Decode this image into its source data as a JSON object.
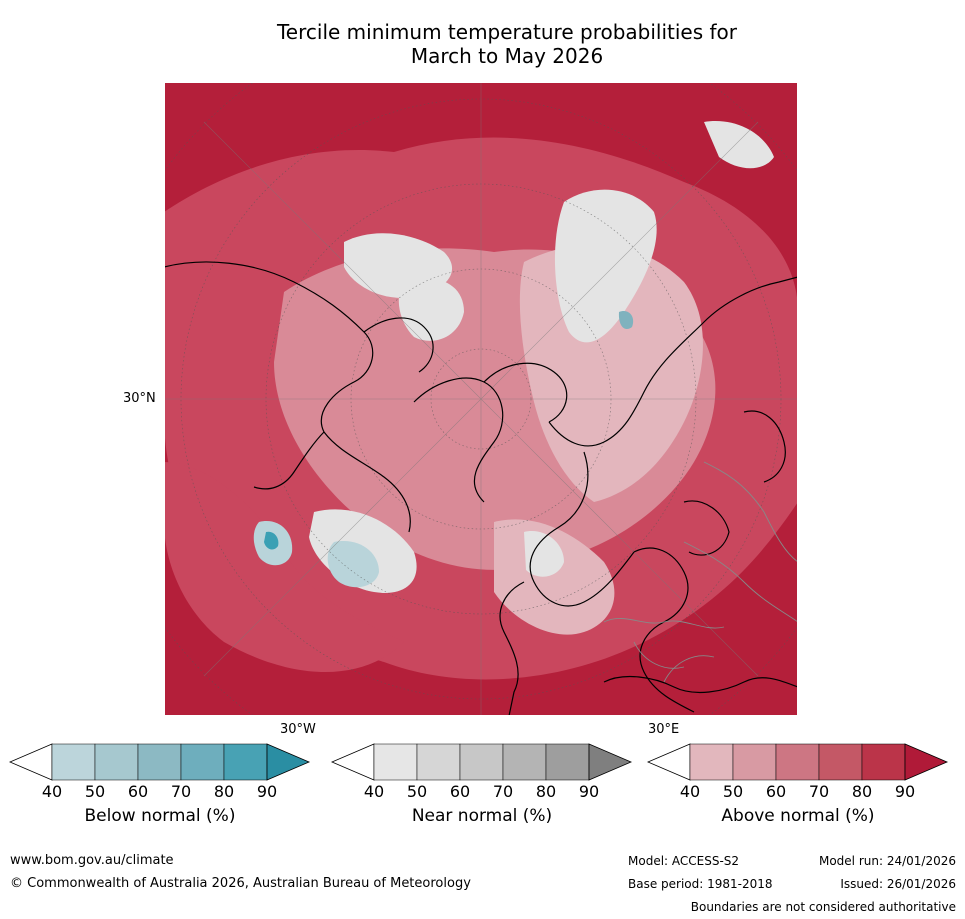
{
  "title_line1": "Tercile minimum temperature probabilities for",
  "title_line2": "March to May 2026",
  "map": {
    "lat_label": "30°N",
    "lon_label_left": "30°W",
    "lon_label_right": "30°E",
    "colors": {
      "above_dark": "#b41f3a",
      "above_mid": "#c9475e",
      "above_light": "#d98a97",
      "above_pale": "#e3b6bd",
      "near_light": "#e4e4e4",
      "below_light": "#b9d4da",
      "below_mid": "#7fb2be",
      "below_dark": "#3aa0b4"
    }
  },
  "colorbars": [
    {
      "label": "Below normal (%)",
      "ticks": [
        "40",
        "50",
        "60",
        "70",
        "80",
        "90"
      ],
      "colors": [
        "#ffffff",
        "#bcd5db",
        "#a6c8cf",
        "#8cb9c3",
        "#6eaebd",
        "#48a2b4",
        "#2a8ea3"
      ]
    },
    {
      "label": "Near normal (%)",
      "ticks": [
        "40",
        "50",
        "60",
        "70",
        "80",
        "90"
      ],
      "colors": [
        "#ffffff",
        "#e6e6e6",
        "#d6d6d6",
        "#c7c7c7",
        "#b4b4b4",
        "#9e9e9e",
        "#7f7f7f"
      ]
    },
    {
      "label": "Above normal (%)",
      "ticks": [
        "40",
        "50",
        "60",
        "70",
        "80",
        "90"
      ],
      "colors": [
        "#ffffff",
        "#e2b7bd",
        "#d89aa3",
        "#cd7683",
        "#c45866",
        "#bb3449",
        "#b01a38"
      ]
    }
  ],
  "footer": {
    "website": "www.bom.gov.au/climate",
    "copyright": "© Commonwealth of Australia 2026, Australian Bureau of Meteorology",
    "model": "Model: ACCESS-S2",
    "model_run": "Model run: 24/01/2026",
    "base_period": "Base period: 1981-2018",
    "issued": "Issued: 26/01/2026",
    "disclaimer": "Boundaries are not considered authoritative"
  }
}
